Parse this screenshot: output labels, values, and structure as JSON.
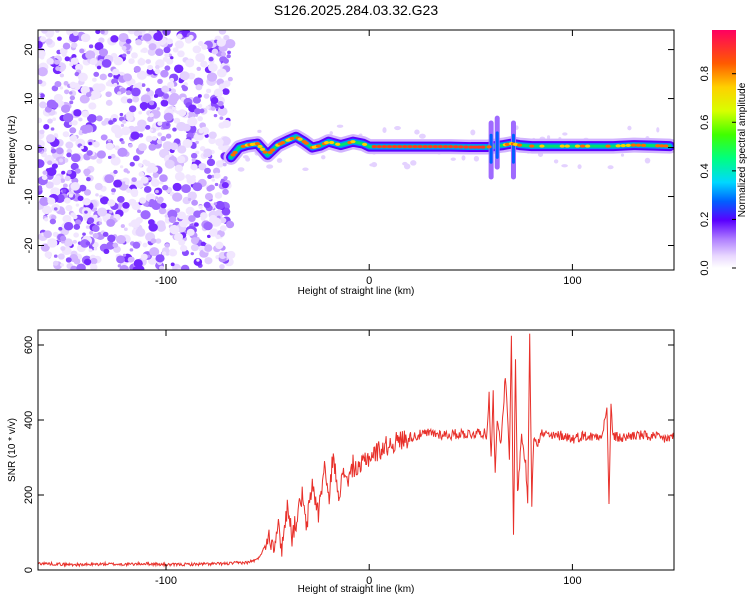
{
  "title": "S126.2025.284.03.32.G23",
  "chart_data": [
    {
      "type": "heatmap",
      "xlabel": "Height of straight line (km)",
      "ylabel": "Frequency (Hz)",
      "xlim": [
        -163,
        150
      ],
      "ylim": [
        -25,
        24
      ],
      "xticks": [
        -100,
        0,
        100
      ],
      "yticks": [
        -20,
        -10,
        0,
        10,
        20
      ],
      "ridge": {
        "description": "dominant frequency trace starting near -70 km",
        "x": [
          -68,
          -64,
          -60,
          -55,
          -50,
          -45,
          -40,
          -36,
          -32,
          -28,
          -24,
          -20,
          -14,
          -8,
          -3,
          0,
          10,
          20,
          30,
          40,
          50,
          58,
          62,
          66,
          70,
          74,
          80,
          90,
          100,
          110,
          120,
          130,
          140,
          148
        ],
        "y": [
          -2,
          0,
          0.5,
          0.8,
          -1.5,
          0.5,
          1.5,
          2.2,
          1.2,
          0,
          0.4,
          1.2,
          0.5,
          1.2,
          0.8,
          0.2,
          0.2,
          0.2,
          0.2,
          0.2,
          0.1,
          0.1,
          0.3,
          0.5,
          0.8,
          0.5,
          0.3,
          0.3,
          0.3,
          0.3,
          0.3,
          0.5,
          0.4,
          0.3
        ]
      },
      "colorbar": {
        "label": "Normalized spectral amplitude",
        "ticks": [
          0.0,
          0.2,
          0.4,
          0.6,
          0.8
        ],
        "range": [
          0,
          0.98
        ]
      }
    },
    {
      "type": "line",
      "xlabel": "Height of straight line (km)",
      "ylabel": "SNR (10 * v/v)",
      "xlim": [
        -163,
        150
      ],
      "ylim": [
        0,
        640
      ],
      "xticks": [
        -100,
        0,
        100
      ],
      "yticks": [
        0,
        200,
        400,
        600
      ],
      "series": [
        {
          "name": "SNR",
          "color": "#e8302a",
          "x": [
            -163,
            -150,
            -140,
            -130,
            -120,
            -110,
            -100,
            -90,
            -80,
            -70,
            -65,
            -60,
            -55,
            -52,
            -50,
            -47,
            -45,
            -43,
            -40,
            -38,
            -35,
            -33,
            -31,
            -28,
            -25,
            -22,
            -20,
            -18,
            -15,
            -12,
            -10,
            -8,
            -5,
            -2,
            0,
            5,
            10,
            15,
            20,
            25,
            30,
            35,
            40,
            45,
            50,
            55,
            58,
            59,
            60,
            61,
            62,
            63,
            65,
            67,
            69,
            70,
            71,
            72,
            73,
            75,
            77,
            78,
            79,
            80,
            81,
            83,
            85,
            90,
            95,
            100,
            105,
            110,
            115,
            117,
            118,
            119,
            120,
            125,
            130,
            135,
            140,
            145,
            150
          ],
          "values": [
            18,
            15,
            14,
            16,
            15,
            17,
            14,
            15,
            16,
            17,
            19,
            20,
            28,
            55,
            95,
            70,
            120,
            60,
            180,
            90,
            150,
            200,
            110,
            230,
            150,
            280,
            180,
            300,
            210,
            260,
            240,
            280,
            260,
            300,
            300,
            320,
            335,
            345,
            355,
            360,
            365,
            362,
            360,
            364,
            363,
            368,
            360,
            470,
            300,
            480,
            250,
            400,
            340,
            520,
            300,
            620,
            90,
            560,
            200,
            360,
            280,
            180,
            630,
            180,
            360,
            340,
            365,
            355,
            360,
            350,
            358,
            355,
            365,
            440,
            170,
            445,
            355,
            352,
            360,
            358,
            355,
            350,
            355
          ]
        }
      ]
    }
  ]
}
